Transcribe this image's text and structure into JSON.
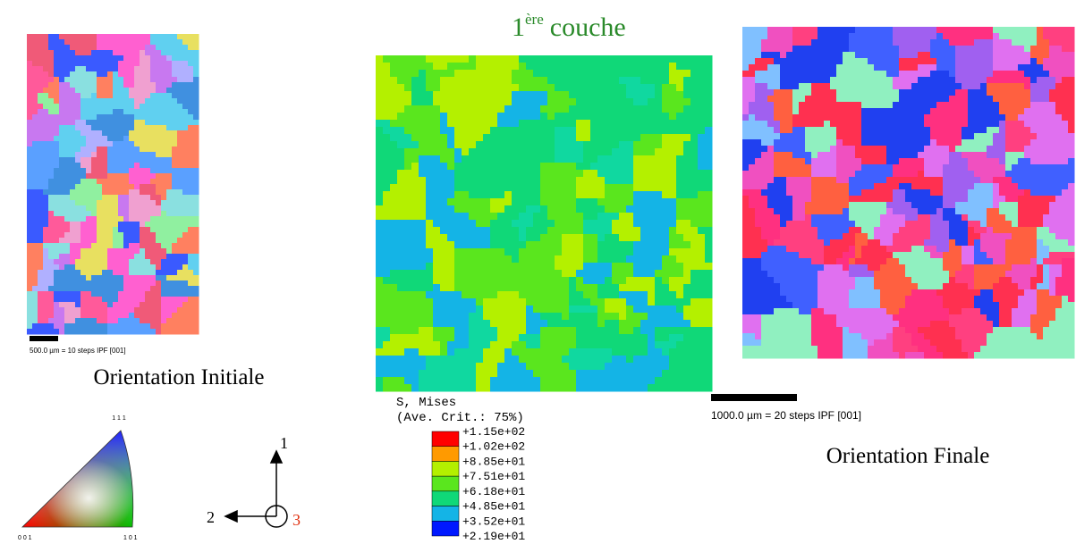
{
  "left_map": {
    "scale_label": "500.0 µm = 10 steps   IPF [001]",
    "caption": "Orientation Initiale"
  },
  "ipf_key": {
    "top": "1 1 1",
    "left": "0 0 1",
    "right": "1 0 1"
  },
  "axes": {
    "up": "1",
    "left": "2",
    "out": "3"
  },
  "middle_map": {
    "title": {
      "number": "1",
      "superscript": "ère",
      "word": "couche"
    },
    "legend": {
      "line1": "S, Mises",
      "line2": "(Ave. Crit.: 75%)",
      "labels": [
        "+1.15e+02",
        "+1.02e+02",
        "+8.85e+01",
        "+7.51e+01",
        "+6.18e+01",
        "+4.85e+01",
        "+3.52e+01",
        "+2.19e+01"
      ],
      "colors": [
        "#ff0000",
        "#ff9a00",
        "#b4f000",
        "#5ae61e",
        "#10d878",
        "#14b4e6",
        "#0018ff"
      ]
    }
  },
  "right_map": {
    "scale_label": "1000.0 µm = 20 steps    IPF [001]",
    "caption": "Orientation Finale"
  }
}
